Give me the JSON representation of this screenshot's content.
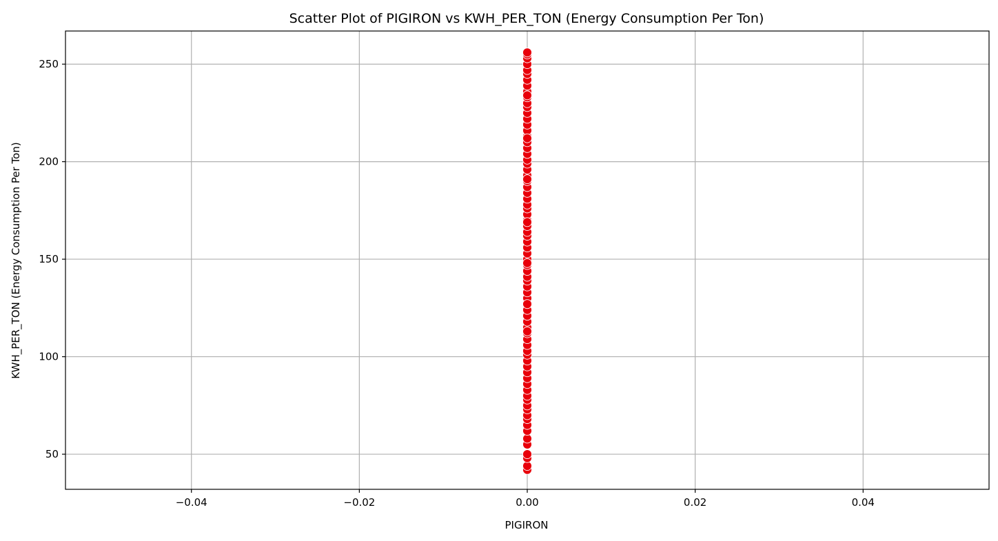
{
  "chart_data": {
    "type": "scatter",
    "title": "Scatter Plot of PIGIRON vs KWH_PER_TON (Energy Consumption Per Ton)",
    "xlabel": "PIGIRON",
    "ylabel": "KWH_PER_TON (Energy Consumption Per Ton)",
    "xlim": [
      -0.055,
      0.055
    ],
    "ylim": [
      32,
      267
    ],
    "xticks": [
      -0.04,
      -0.02,
      0.0,
      0.02,
      0.04
    ],
    "xtick_labels": [
      "−0.04",
      "−0.02",
      "0.00",
      "0.02",
      "0.04"
    ],
    "yticks": [
      50,
      100,
      150,
      200,
      250
    ],
    "ytick_labels": [
      "50",
      "100",
      "150",
      "200",
      "250"
    ],
    "grid": true,
    "marker_color": "#e8000b",
    "marker_edge_color": "#ffffff",
    "series": [
      {
        "x": [
          0,
          0,
          0,
          0,
          0,
          0,
          0,
          0,
          0,
          0,
          0,
          0,
          0,
          0,
          0,
          0,
          0,
          0,
          0,
          0,
          0,
          0,
          0,
          0,
          0,
          0,
          0,
          0,
          0,
          0,
          0,
          0,
          0,
          0,
          0,
          0,
          0,
          0,
          0,
          0,
          0,
          0,
          0,
          0,
          0,
          0,
          0,
          0,
          0,
          0,
          0,
          0,
          0,
          0,
          0,
          0,
          0,
          0,
          0,
          0,
          0,
          0,
          0,
          0,
          0,
          0,
          0,
          0,
          0,
          0,
          0,
          0,
          0,
          0,
          0,
          0,
          0,
          0,
          0,
          0,
          0,
          0,
          0
        ],
        "y": [
          42,
          44,
          48,
          50,
          55,
          58,
          62,
          65,
          68,
          70,
          73,
          75,
          78,
          80,
          83,
          86,
          89,
          92,
          95,
          98,
          101,
          103,
          106,
          109,
          112,
          115,
          118,
          121,
          124,
          127,
          130,
          133,
          136,
          139,
          141,
          144,
          147,
          150,
          153,
          156,
          159,
          162,
          164,
          167,
          170,
          173,
          176,
          178,
          181,
          184,
          187,
          190,
          193,
          196,
          199,
          201,
          204,
          207,
          210,
          213,
          216,
          219,
          222,
          225,
          228,
          230,
          233,
          236,
          239,
          242,
          245,
          247,
          250,
          253,
          255,
          256,
          234,
          212,
          191,
          169,
          148,
          127,
          113
        ]
      }
    ]
  }
}
